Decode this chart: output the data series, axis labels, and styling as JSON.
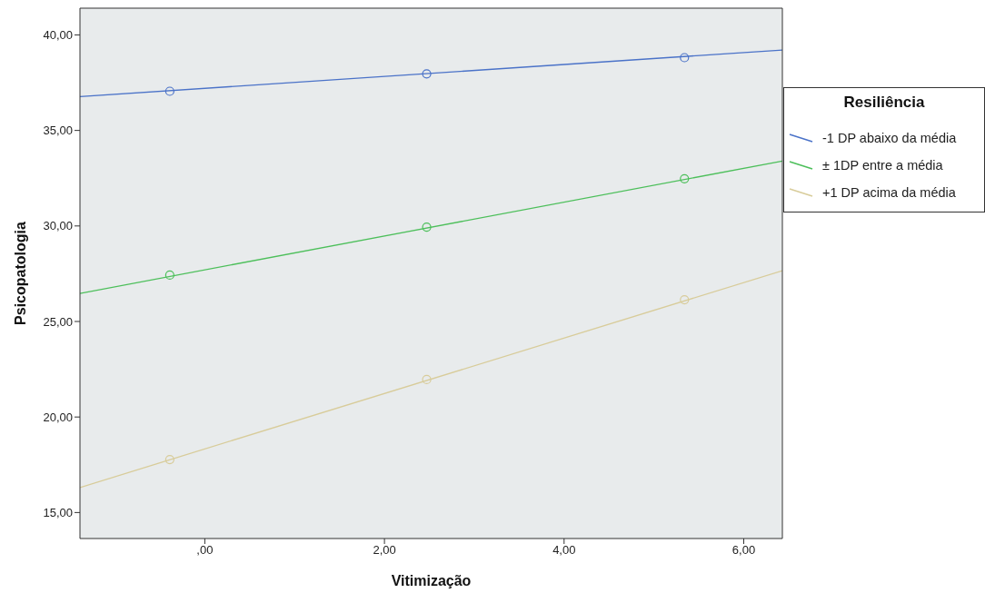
{
  "chart_data": {
    "type": "line",
    "xlabel": "Vitimização",
    "ylabel": "Psicopatologia",
    "legend_title": "Resiliência",
    "legend": "right",
    "grid": false,
    "marker": "circle",
    "line_style": "solid",
    "xlim": [
      -1.39,
      6.43
    ],
    "xticks": [
      {
        "value": 0,
        "label": ",00"
      },
      {
        "value": 2,
        "label": "2,00"
      },
      {
        "value": 4,
        "label": "4,00"
      },
      {
        "value": 6,
        "label": "6,00"
      }
    ],
    "ylim": [
      13.64,
      41.4
    ],
    "yticks": [
      {
        "value": 15,
        "label": "15,00"
      },
      {
        "value": 20,
        "label": "20,00"
      },
      {
        "value": 25,
        "label": "25,00"
      },
      {
        "value": 30,
        "label": "30,00"
      },
      {
        "value": 35,
        "label": "35,00"
      },
      {
        "value": 40,
        "label": "40,00"
      }
    ],
    "series": [
      {
        "name": "-1 DP abaixo da média",
        "marker": "none",
        "color": "#4a72c8",
        "x": [
          -1.39,
          6.43
        ],
        "values": [
          36.77,
          39.21
        ]
      },
      {
        "name": "± 1DP entre a média",
        "marker": "none",
        "color": "#4cbf5a",
        "x": [
          -1.39,
          6.43
        ],
        "values": [
          26.47,
          33.4
        ]
      },
      {
        "name": "+1 DP acima da média",
        "marker": "none",
        "color": "#d8cc9a",
        "x": [
          -1.39,
          6.43
        ],
        "values": [
          16.31,
          27.66
        ]
      },
      {
        "type": "scatter",
        "color": "#4a72c8",
        "x": [
          -0.39,
          2.47,
          5.34
        ],
        "values": [
          37.05,
          37.96,
          38.81
        ]
      },
      {
        "type": "scatter",
        "color": "#4cbf5a",
        "x": [
          -0.39,
          2.47,
          5.34
        ],
        "values": [
          27.43,
          29.94,
          32.47
        ]
      },
      {
        "type": "scatter",
        "color": "#d8cc9a",
        "x": [
          -0.39,
          2.47,
          5.34
        ],
        "values": [
          17.77,
          21.96,
          26.14
        ]
      }
    ]
  }
}
